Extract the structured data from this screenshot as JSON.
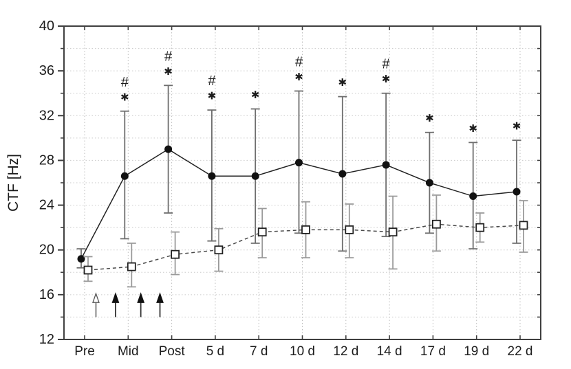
{
  "figure": {
    "background": "#ffffff"
  },
  "chart_data": {
    "type": "line",
    "title": "",
    "xlabel": "",
    "ylabel": "CTF [Hz]",
    "ylim": [
      12,
      40
    ],
    "y_label_step": 4,
    "y_tick_step": 2,
    "grid": {
      "style": "dotted",
      "horizontal_every": 2,
      "vertical": "per-category"
    },
    "legend": "none",
    "categories": [
      "Pre",
      "Mid",
      "Post",
      "5 d",
      "7 d",
      "10 d",
      "12 d",
      "14 d",
      "17 d",
      "19 d",
      "22 d"
    ],
    "y_tick_labels": [
      "12",
      "16",
      "20",
      "24",
      "28",
      "32",
      "36",
      "40"
    ],
    "colors": {
      "axis": "#3f3f3f",
      "text": "#1c1c1c",
      "grid_horizontal": "#c9c9c9",
      "grid_vertical": "#bdbdbd"
    },
    "series": [
      {
        "name": "filled-circle-series",
        "marker": "filled-circle",
        "line_style": "solid",
        "color": "#222222",
        "marker_color": "#111111",
        "error_bar_color": "#6e6e6e",
        "x_offset": -5,
        "values": [
          19.2,
          26.6,
          29.0,
          26.6,
          26.6,
          27.8,
          26.8,
          27.6,
          26.0,
          24.8,
          25.2
        ],
        "err_low": [
          18.4,
          21.0,
          23.3,
          20.8,
          20.6,
          21.5,
          19.9,
          21.2,
          21.5,
          20.1,
          20.6
        ],
        "err_high": [
          20.1,
          32.4,
          34.7,
          32.5,
          32.6,
          34.2,
          33.7,
          34.0,
          30.5,
          29.6,
          29.8
        ]
      },
      {
        "name": "open-square-series",
        "marker": "open-square",
        "line_style": "dashed",
        "color": "#4a4a4a",
        "marker_color": "#ffffff",
        "marker_stroke": "#222222",
        "error_bar_color": "#9a9a9a",
        "x_offset": 5,
        "values": [
          18.2,
          18.5,
          19.6,
          20.0,
          21.6,
          21.8,
          21.8,
          21.6,
          22.3,
          22.0,
          22.2
        ],
        "err_low": [
          17.2,
          16.7,
          17.8,
          18.1,
          19.3,
          19.3,
          19.3,
          18.3,
          19.9,
          20.7,
          19.8
        ],
        "err_high": [
          19.4,
          20.6,
          21.6,
          21.9,
          23.7,
          24.3,
          24.1,
          24.8,
          24.9,
          23.3,
          24.4
        ]
      }
    ],
    "significance_annotations": [
      {
        "category": "Mid",
        "symbols": [
          "#",
          "*"
        ]
      },
      {
        "category": "Post",
        "symbols": [
          "#",
          "*"
        ]
      },
      {
        "category": "5 d",
        "symbols": [
          "#",
          "*"
        ]
      },
      {
        "category": "7 d",
        "symbols": [
          "*"
        ]
      },
      {
        "category": "10 d",
        "symbols": [
          "#",
          "*"
        ]
      },
      {
        "category": "12 d",
        "symbols": [
          "*"
        ]
      },
      {
        "category": "14 d",
        "symbols": [
          "#",
          "*"
        ]
      },
      {
        "category": "17 d",
        "symbols": [
          "*"
        ]
      },
      {
        "category": "19 d",
        "symbols": [
          "*"
        ]
      },
      {
        "category": "22 d",
        "symbols": [
          "*"
        ]
      }
    ],
    "arrows": {
      "x_positions_category_units": [
        0.26,
        0.71,
        1.29,
        1.73
      ],
      "y_from": 14.0,
      "y_to": 16.1,
      "styles": [
        "open",
        "filled",
        "filled",
        "filled"
      ]
    }
  }
}
